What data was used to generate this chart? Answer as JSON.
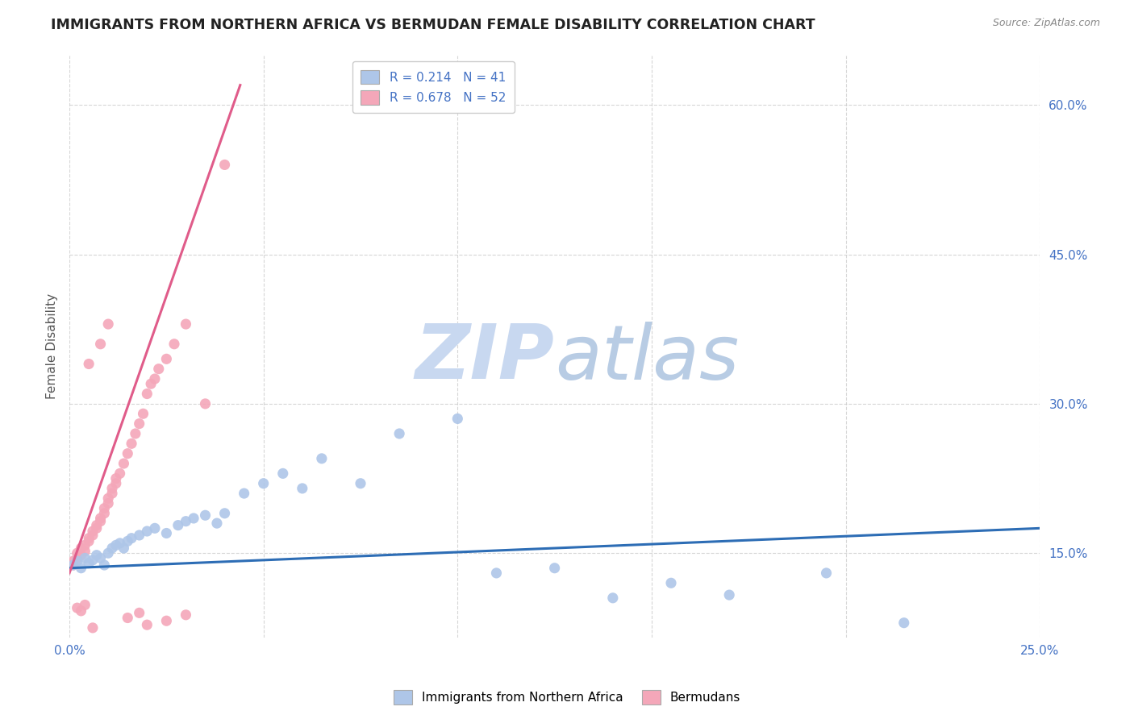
{
  "title": "IMMIGRANTS FROM NORTHERN AFRICA VS BERMUDAN FEMALE DISABILITY CORRELATION CHART",
  "source": "Source: ZipAtlas.com",
  "ylabel": "Female Disability",
  "legend_label_blue": "Immigrants from Northern Africa",
  "legend_label_pink": "Bermudans",
  "r_blue": 0.214,
  "n_blue": 41,
  "r_pink": 0.678,
  "n_pink": 52,
  "xlim": [
    0.0,
    0.25
  ],
  "ylim": [
    0.065,
    0.65
  ],
  "yticks": [
    0.15,
    0.3,
    0.45,
    0.6
  ],
  "xticks": [
    0.0,
    0.05,
    0.1,
    0.15,
    0.2,
    0.25
  ],
  "xtick_labels_show": [
    "0.0%",
    "25.0%"
  ],
  "ytick_labels": [
    "15.0%",
    "30.0%",
    "45.0%",
    "60.0%"
  ],
  "blue_x": [
    0.001,
    0.002,
    0.003,
    0.004,
    0.005,
    0.006,
    0.007,
    0.008,
    0.009,
    0.01,
    0.011,
    0.012,
    0.013,
    0.014,
    0.015,
    0.016,
    0.018,
    0.02,
    0.022,
    0.025,
    0.028,
    0.03,
    0.032,
    0.035,
    0.038,
    0.04,
    0.045,
    0.05,
    0.055,
    0.06,
    0.065,
    0.075,
    0.085,
    0.1,
    0.11,
    0.125,
    0.14,
    0.155,
    0.17,
    0.195,
    0.215
  ],
  "blue_y": [
    0.138,
    0.142,
    0.135,
    0.145,
    0.14,
    0.143,
    0.148,
    0.145,
    0.138,
    0.15,
    0.155,
    0.158,
    0.16,
    0.155,
    0.162,
    0.165,
    0.168,
    0.172,
    0.175,
    0.17,
    0.178,
    0.182,
    0.185,
    0.188,
    0.18,
    0.19,
    0.21,
    0.22,
    0.23,
    0.215,
    0.245,
    0.22,
    0.27,
    0.285,
    0.13,
    0.135,
    0.105,
    0.12,
    0.108,
    0.13,
    0.08
  ],
  "pink_x": [
    0.001,
    0.001,
    0.002,
    0.002,
    0.003,
    0.003,
    0.004,
    0.004,
    0.005,
    0.005,
    0.006,
    0.006,
    0.007,
    0.007,
    0.008,
    0.008,
    0.009,
    0.009,
    0.01,
    0.01,
    0.011,
    0.011,
    0.012,
    0.012,
    0.013,
    0.014,
    0.015,
    0.016,
    0.017,
    0.018,
    0.019,
    0.02,
    0.021,
    0.022,
    0.023,
    0.025,
    0.027,
    0.03,
    0.035,
    0.04,
    0.005,
    0.008,
    0.01,
    0.015,
    0.018,
    0.02,
    0.025,
    0.03,
    0.002,
    0.003,
    0.004,
    0.006
  ],
  "pink_y": [
    0.138,
    0.142,
    0.145,
    0.15,
    0.148,
    0.155,
    0.152,
    0.158,
    0.162,
    0.165,
    0.168,
    0.172,
    0.175,
    0.178,
    0.182,
    0.185,
    0.19,
    0.195,
    0.2,
    0.205,
    0.21,
    0.215,
    0.22,
    0.225,
    0.23,
    0.24,
    0.25,
    0.26,
    0.27,
    0.28,
    0.29,
    0.31,
    0.32,
    0.325,
    0.335,
    0.345,
    0.36,
    0.38,
    0.3,
    0.54,
    0.34,
    0.36,
    0.38,
    0.085,
    0.09,
    0.078,
    0.082,
    0.088,
    0.095,
    0.092,
    0.098,
    0.075
  ],
  "blue_line_x0": 0.0,
  "blue_line_y0": 0.135,
  "blue_line_x1": 0.25,
  "blue_line_y1": 0.175,
  "pink_line_x0": 0.0,
  "pink_line_y0": 0.13,
  "pink_line_x1": 0.044,
  "pink_line_y1": 0.62,
  "blue_dot_color": "#aec6e8",
  "pink_dot_color": "#f4a7b9",
  "blue_line_color": "#2d6db5",
  "pink_line_color": "#e05c8a",
  "watermark_zip": "ZIP",
  "watermark_atlas": "atlas",
  "watermark_color_zip": "#c8d8f0",
  "watermark_color_atlas": "#b8cce4",
  "background_color": "#ffffff",
  "grid_color": "#cccccc",
  "title_color": "#222222",
  "axis_label_color": "#555555",
  "right_tick_color": "#4472c4"
}
